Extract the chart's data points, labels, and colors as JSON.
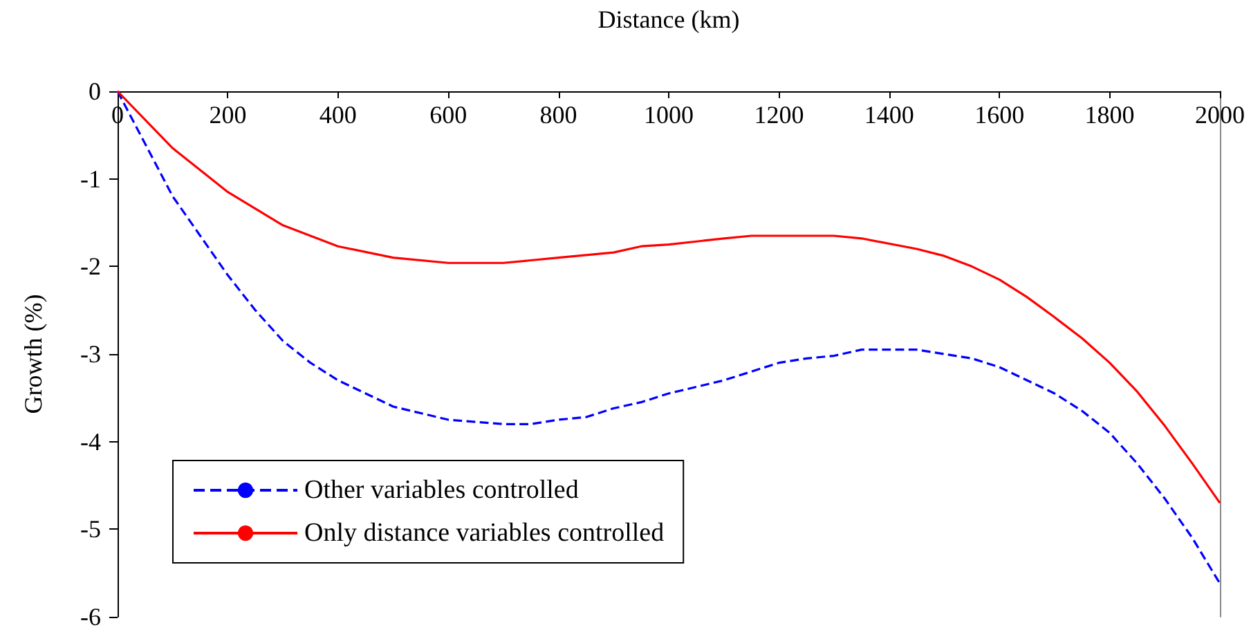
{
  "chart_data": {
    "type": "line",
    "xlabel": "Distance (km)",
    "ylabel": "Growth (%)",
    "xlim": [
      0,
      2000
    ],
    "xticks": [
      0,
      200,
      400,
      600,
      800,
      1000,
      1200,
      1400,
      1600,
      1800,
      2000
    ],
    "ylim": [
      -6,
      0
    ],
    "yticks": [
      -6,
      -5,
      -4,
      -3,
      -2,
      -1,
      0
    ],
    "grid": false,
    "legend": "bottom left",
    "marker": "none",
    "series": [
      {
        "name": "Other variables controlled",
        "color": "#0000ff",
        "line_style": "dashed",
        "x": [
          0,
          100,
          150,
          200,
          250,
          300,
          350,
          400,
          450,
          500,
          600,
          700,
          750,
          800,
          850,
          900,
          950,
          1000,
          1100,
          1150,
          1200,
          1250,
          1300,
          1350,
          1450,
          1550,
          1600,
          1700,
          1750,
          1800,
          1850,
          1900,
          1950,
          2000
        ],
        "values": [
          0,
          -1.2,
          -1.65,
          -2.1,
          -2.5,
          -2.85,
          -3.1,
          -3.3,
          -3.45,
          -3.6,
          -3.75,
          -3.8,
          -3.8,
          -3.75,
          -3.72,
          -3.62,
          -3.55,
          -3.45,
          -3.3,
          -3.2,
          -3.1,
          -3.05,
          -3.02,
          -2.95,
          -2.95,
          -3.05,
          -3.15,
          -3.45,
          -3.65,
          -3.9,
          -4.25,
          -4.65,
          -5.1,
          -5.62
        ]
      },
      {
        "name": "Only distance variables controlled",
        "color": "#ff0000",
        "line_style": "solid",
        "x": [
          0,
          100,
          200,
          300,
          400,
          500,
          600,
          700,
          800,
          900,
          950,
          1000,
          1100,
          1150,
          1300,
          1350,
          1450,
          1500,
          1550,
          1600,
          1650,
          1700,
          1750,
          1800,
          1850,
          1900,
          1950,
          2000
        ],
        "values": [
          0,
          -0.65,
          -1.15,
          -1.53,
          -1.77,
          -1.9,
          -1.96,
          -1.96,
          -1.9,
          -1.84,
          -1.77,
          -1.75,
          -1.68,
          -1.65,
          -1.65,
          -1.68,
          -1.8,
          -1.88,
          -2.0,
          -2.15,
          -2.35,
          -2.58,
          -2.82,
          -3.1,
          -3.43,
          -3.82,
          -4.25,
          -4.7
        ]
      }
    ]
  }
}
